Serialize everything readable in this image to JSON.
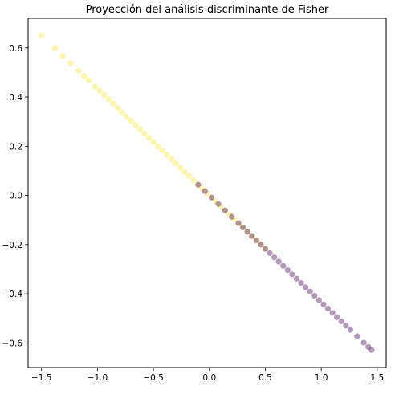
{
  "chart_data": {
    "type": "scatter",
    "title": "Proyección del análisis discriminante de Fisher",
    "xlabel": "",
    "ylabel": "",
    "xlim": [
      -1.62,
      1.58
    ],
    "ylim": [
      -0.7,
      0.72
    ],
    "xticks": [
      -1.5,
      -1.0,
      -0.5,
      0.0,
      0.5,
      1.0,
      1.5
    ],
    "xtick_labels": [
      "−1.5",
      "−1.0",
      "−0.5",
      "0.0",
      "0.5",
      "1.0",
      "1.5"
    ],
    "yticks": [
      -0.6,
      -0.4,
      -0.2,
      0.0,
      0.2,
      0.4,
      0.6
    ],
    "ytick_labels": [
      "−0.6",
      "−0.4",
      "−0.2",
      "0.0",
      "0.2",
      "0.4",
      "0.6"
    ],
    "grid": false,
    "legend": "none",
    "line_slope": -0.434,
    "marker_alpha": 0.12,
    "series": [
      {
        "color": "#fde725",
        "x": [
          -1.5,
          -1.38,
          -1.31,
          -1.24,
          -1.17,
          -1.12,
          -1.08,
          -1.02,
          -0.98,
          -0.94,
          -0.9,
          -0.86,
          -0.82,
          -0.78,
          -0.74,
          -0.7,
          -0.66,
          -0.62,
          -0.58,
          -0.54,
          -0.5,
          -0.46,
          -0.42,
          -0.38,
          -0.34,
          -0.3,
          -0.26,
          -0.22,
          -0.18,
          -0.14,
          -0.1,
          -0.06,
          -0.02,
          0.02,
          0.06,
          0.1,
          0.14,
          0.18,
          0.22,
          0.26,
          0.3,
          0.34,
          0.38,
          0.42,
          0.46,
          0.5
        ]
      },
      {
        "color": "#440154",
        "x": [
          -0.1,
          -0.04,
          0.02,
          0.08,
          0.14,
          0.2,
          0.26,
          0.3,
          0.34,
          0.38,
          0.42,
          0.46,
          0.5,
          0.54,
          0.58,
          0.62,
          0.66,
          0.7,
          0.74,
          0.78,
          0.82,
          0.86,
          0.9,
          0.94,
          0.98,
          1.02,
          1.06,
          1.1,
          1.14,
          1.18,
          1.22,
          1.26,
          1.32,
          1.38,
          1.42,
          1.45
        ]
      }
    ]
  }
}
